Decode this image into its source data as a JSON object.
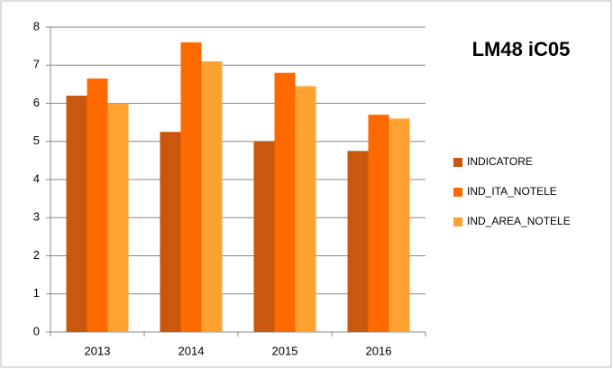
{
  "chart_data": {
    "type": "bar",
    "title": "LM48 iC05",
    "categories": [
      "2013",
      "2014",
      "2015",
      "2016"
    ],
    "series": [
      {
        "name": "INDICATORE",
        "color": "#c9580e",
        "values": [
          6.2,
          5.25,
          5.0,
          4.75
        ]
      },
      {
        "name": "IND_ITA_NOTELE",
        "color": "#ff6a00",
        "values": [
          6.65,
          7.6,
          6.8,
          5.7
        ]
      },
      {
        "name": "IND_AREA_NOTELE",
        "color": "#ffa232",
        "values": [
          6.0,
          7.1,
          6.45,
          5.6
        ]
      }
    ],
    "ylim": [
      0,
      8
    ],
    "yticks": [
      0,
      1,
      2,
      3,
      4,
      5,
      6,
      7,
      8
    ],
    "grid": true,
    "legend": "right"
  }
}
